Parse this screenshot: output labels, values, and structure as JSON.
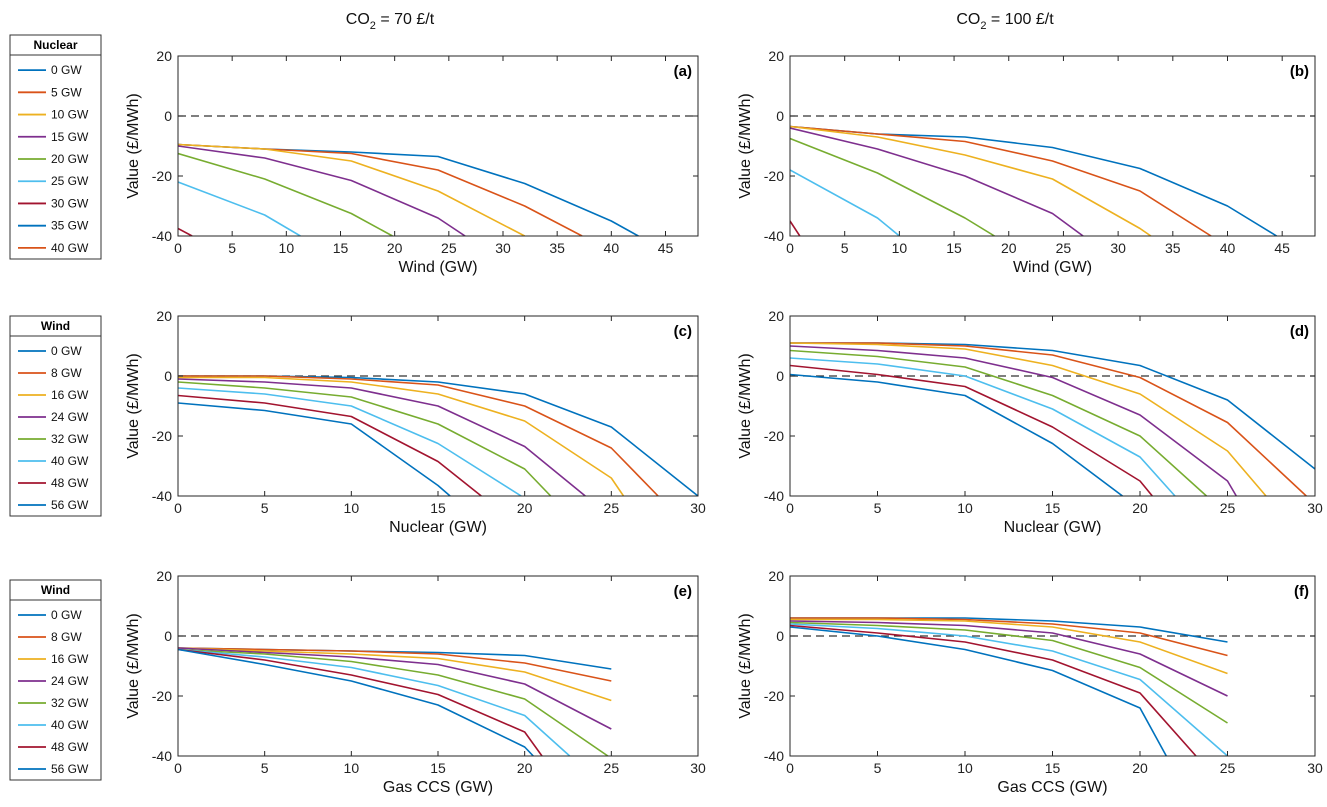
{
  "figure": {
    "col_titles": [
      {
        "prefix": "CO",
        "sub": "2",
        "suffix": " = 70 £/t"
      },
      {
        "prefix": "CO",
        "sub": "2",
        "suffix": " = 100 £/t"
      }
    ]
  },
  "legends": [
    {
      "title": "Nuclear",
      "entries": [
        "0 GW",
        "5 GW",
        "10 GW",
        "15 GW",
        "20 GW",
        "25 GW",
        "30 GW",
        "35 GW",
        "40 GW"
      ]
    },
    {
      "title": "Wind",
      "entries": [
        "0 GW",
        "8 GW",
        "16 GW",
        "24 GW",
        "32 GW",
        "40 GW",
        "48  GW",
        "56 GW"
      ]
    },
    {
      "title": "Wind",
      "entries": [
        "0 GW",
        "8 GW",
        "16 GW",
        "24 GW",
        "32 GW",
        "40 GW",
        "48 GW",
        "56 GW"
      ]
    }
  ],
  "colors": [
    "#0072BD",
    "#D95319",
    "#EDB120",
    "#7E2F8E",
    "#77AC30",
    "#4DBEEE",
    "#A2142F",
    "#0072BD",
    "#D95319"
  ],
  "chart_data": [
    {
      "type": "line",
      "tag": "(a)",
      "xlabel": "Wind (GW)",
      "ylabel": "Value (£/MWh)",
      "xlim": [
        0,
        48
      ],
      "ylim": [
        -40,
        20
      ],
      "xticks": [
        0,
        5,
        10,
        15,
        20,
        25,
        30,
        35,
        40,
        45
      ],
      "yticks": [
        -40,
        -20,
        0,
        20
      ],
      "reference_line_y": 0,
      "series": [
        {
          "name": "0 GW",
          "x": [
            0,
            8,
            16,
            24,
            32,
            40,
            42.5
          ],
          "y": [
            -9.5,
            -11,
            -12,
            -13.5,
            -22.5,
            -35,
            -40
          ]
        },
        {
          "name": "5 GW",
          "x": [
            0,
            8,
            16,
            24,
            32,
            37.3
          ],
          "y": [
            -9.5,
            -11,
            -12.5,
            -18,
            -30,
            -40
          ]
        },
        {
          "name": "10 GW",
          "x": [
            0,
            8,
            16,
            24,
            32
          ],
          "y": [
            -9.5,
            -11,
            -15,
            -25,
            -40
          ]
        },
        {
          "name": "15 GW",
          "x": [
            0,
            8,
            16,
            24,
            26.5
          ],
          "y": [
            -10,
            -14,
            -21.5,
            -34,
            -40
          ]
        },
        {
          "name": "20 GW",
          "x": [
            0,
            8,
            16,
            19.8
          ],
          "y": [
            -12.5,
            -21,
            -32.5,
            -40
          ]
        },
        {
          "name": "25 GW",
          "x": [
            0,
            8,
            11.3
          ],
          "y": [
            -22,
            -33,
            -40
          ]
        },
        {
          "name": "30 GW",
          "x": [
            0,
            1.3
          ],
          "y": [
            -37.5,
            -40
          ]
        }
      ]
    },
    {
      "type": "line",
      "tag": "(b)",
      "xlabel": "Wind (GW)",
      "ylabel": "Value (£/MWh)",
      "xlim": [
        0,
        48
      ],
      "ylim": [
        -40,
        20
      ],
      "xticks": [
        0,
        5,
        10,
        15,
        20,
        25,
        30,
        35,
        40,
        45
      ],
      "yticks": [
        -40,
        -20,
        0,
        20
      ],
      "reference_line_y": 0,
      "series": [
        {
          "name": "0 GW",
          "x": [
            0,
            8,
            16,
            24,
            32,
            40,
            44.5
          ],
          "y": [
            -3.5,
            -6,
            -7,
            -10.5,
            -17.5,
            -30,
            -40
          ]
        },
        {
          "name": "5 GW",
          "x": [
            0,
            8,
            16,
            24,
            32,
            38.5
          ],
          "y": [
            -3.5,
            -6,
            -8.5,
            -15,
            -25,
            -40
          ]
        },
        {
          "name": "10 GW",
          "x": [
            0,
            8,
            16,
            24,
            32,
            33
          ],
          "y": [
            -3.5,
            -7,
            -13,
            -21,
            -37.5,
            -40
          ]
        },
        {
          "name": "15 GW",
          "x": [
            0,
            8,
            16,
            24,
            26.8
          ],
          "y": [
            -4,
            -11,
            -20,
            -32.5,
            -40
          ]
        },
        {
          "name": "20 GW",
          "x": [
            0,
            8,
            16,
            18.7
          ],
          "y": [
            -7.5,
            -19,
            -34,
            -40
          ]
        },
        {
          "name": "25 GW",
          "x": [
            0,
            8,
            10
          ],
          "y": [
            -18,
            -34,
            -40
          ]
        },
        {
          "name": "30 GW",
          "x": [
            0,
            0.9
          ],
          "y": [
            -35,
            -40
          ]
        }
      ]
    },
    {
      "type": "line",
      "tag": "(c)",
      "xlabel": "Nuclear (GW)",
      "ylabel": "Value (£/MWh)",
      "xlim": [
        0,
        30
      ],
      "ylim": [
        -40,
        20
      ],
      "xticks": [
        0,
        5,
        10,
        15,
        20,
        25,
        30
      ],
      "yticks": [
        -40,
        -20,
        0,
        20
      ],
      "reference_line_y": 0,
      "series": [
        {
          "name": "0 GW",
          "x": [
            0,
            5,
            10,
            15,
            20,
            25,
            30
          ],
          "y": [
            0,
            0,
            -0.5,
            -2,
            -6,
            -17,
            -40
          ]
        },
        {
          "name": "8 GW",
          "x": [
            0,
            5,
            10,
            15,
            20,
            25,
            27.7
          ],
          "y": [
            0,
            0,
            -1,
            -3,
            -10,
            -24,
            -40
          ]
        },
        {
          "name": "16 GW",
          "x": [
            0,
            5,
            10,
            15,
            20,
            25,
            25.7
          ],
          "y": [
            -0.5,
            -0.5,
            -2,
            -6,
            -15,
            -34,
            -40
          ]
        },
        {
          "name": "24 GW",
          "x": [
            0,
            5,
            10,
            15,
            20,
            23.5
          ],
          "y": [
            -1,
            -2,
            -4,
            -10,
            -23.5,
            -40
          ]
        },
        {
          "name": "32 GW",
          "x": [
            0,
            5,
            10,
            15,
            20,
            21.5
          ],
          "y": [
            -2,
            -4,
            -7,
            -16,
            -31,
            -40
          ]
        },
        {
          "name": "40 GW",
          "x": [
            0,
            5,
            10,
            15,
            19.8
          ],
          "y": [
            -4,
            -6,
            -10,
            -22.5,
            -40
          ]
        },
        {
          "name": "48  GW",
          "x": [
            0,
            5,
            10,
            15,
            17.5
          ],
          "y": [
            -6.5,
            -9,
            -13.5,
            -28.5,
            -40
          ]
        },
        {
          "name": "56 GW",
          "x": [
            0,
            5,
            10,
            15,
            15.7
          ],
          "y": [
            -9,
            -11.5,
            -16,
            -36.5,
            -40
          ]
        }
      ]
    },
    {
      "type": "line",
      "tag": "(d)",
      "xlabel": "Nuclear (GW)",
      "ylabel": "Value (£/MWh)",
      "xlim": [
        0,
        30
      ],
      "ylim": [
        -40,
        20
      ],
      "xticks": [
        0,
        5,
        10,
        15,
        20,
        25,
        30
      ],
      "yticks": [
        -40,
        -20,
        0,
        20
      ],
      "reference_line_y": 0,
      "series": [
        {
          "name": "0 GW",
          "x": [
            0,
            5,
            10,
            15,
            20,
            25,
            30
          ],
          "y": [
            11,
            11,
            10.5,
            8.5,
            3.5,
            -8,
            -31
          ]
        },
        {
          "name": "8 GW",
          "x": [
            0,
            5,
            10,
            15,
            20,
            25,
            29.5
          ],
          "y": [
            11,
            11,
            10,
            7,
            -0.5,
            -15.5,
            -40
          ]
        },
        {
          "name": "16 GW",
          "x": [
            0,
            5,
            10,
            15,
            20,
            25,
            27.2
          ],
          "y": [
            11,
            10.5,
            9,
            3.5,
            -6,
            -25,
            -40
          ]
        },
        {
          "name": "24 GW",
          "x": [
            0,
            5,
            10,
            15,
            20,
            25,
            25.5
          ],
          "y": [
            10,
            8.5,
            6,
            -0.5,
            -13,
            -35,
            -40
          ]
        },
        {
          "name": "32 GW",
          "x": [
            0,
            5,
            10,
            15,
            20,
            23.8
          ],
          "y": [
            8.5,
            6.5,
            3,
            -6.5,
            -20,
            -40
          ]
        },
        {
          "name": "40 GW",
          "x": [
            0,
            5,
            10,
            15,
            20,
            22
          ],
          "y": [
            6,
            4,
            0,
            -11,
            -27,
            -40
          ]
        },
        {
          "name": "48 GW",
          "x": [
            0,
            5,
            10,
            15,
            20,
            20.7
          ],
          "y": [
            3.5,
            0.5,
            -3.5,
            -17,
            -35,
            -40
          ]
        },
        {
          "name": "56 GW",
          "x": [
            0,
            5,
            10,
            15,
            19
          ],
          "y": [
            0.5,
            -2,
            -6.5,
            -22.5,
            -40
          ]
        }
      ]
    },
    {
      "type": "line",
      "tag": "(e)",
      "xlabel": "Gas CCS (GW)",
      "ylabel": "Value (£/MWh)",
      "xlim": [
        0,
        30
      ],
      "ylim": [
        -40,
        20
      ],
      "xticks": [
        0,
        5,
        10,
        15,
        20,
        25,
        30
      ],
      "yticks": [
        -40,
        -20,
        0,
        20
      ],
      "reference_line_y": 0,
      "series": [
        {
          "name": "0 GW",
          "x": [
            0,
            5,
            10,
            15,
            20,
            25
          ],
          "y": [
            -4,
            -4.5,
            -5,
            -5.5,
            -6.5,
            -11
          ]
        },
        {
          "name": "8 GW",
          "x": [
            0,
            5,
            10,
            15,
            20,
            25
          ],
          "y": [
            -4,
            -4.5,
            -5,
            -6,
            -9,
            -15
          ]
        },
        {
          "name": "16 GW",
          "x": [
            0,
            5,
            10,
            15,
            20,
            25
          ],
          "y": [
            -4,
            -5,
            -6,
            -7.5,
            -12,
            -21.5
          ]
        },
        {
          "name": "24 GW",
          "x": [
            0,
            5,
            10,
            15,
            20,
            25
          ],
          "y": [
            -4,
            -5.5,
            -7,
            -9.5,
            -16,
            -31
          ]
        },
        {
          "name": "32 GW",
          "x": [
            0,
            5,
            10,
            15,
            20,
            24.8
          ],
          "y": [
            -4.5,
            -6,
            -8.5,
            -13,
            -21,
            -40
          ]
        },
        {
          "name": "40 GW",
          "x": [
            0,
            5,
            10,
            15,
            20,
            22.6
          ],
          "y": [
            -4.5,
            -7,
            -10.5,
            -16.5,
            -26.5,
            -40
          ]
        },
        {
          "name": "48 GW",
          "x": [
            0,
            5,
            10,
            15,
            20,
            21
          ],
          "y": [
            -4.5,
            -8,
            -13,
            -19.5,
            -32,
            -40
          ]
        },
        {
          "name": "56 GW",
          "x": [
            0,
            5,
            10,
            15,
            20,
            20.5
          ],
          "y": [
            -4.5,
            -9.5,
            -15,
            -23,
            -37,
            -40
          ]
        }
      ]
    },
    {
      "type": "line",
      "tag": "(f)",
      "xlabel": "Gas CCS (GW)",
      "ylabel": "Value (£/MWh)",
      "xlim": [
        0,
        30
      ],
      "ylim": [
        -40,
        20
      ],
      "xticks": [
        0,
        5,
        10,
        15,
        20,
        25,
        30
      ],
      "yticks": [
        -40,
        -20,
        0,
        20
      ],
      "reference_line_y": 0,
      "series": [
        {
          "name": "0 GW",
          "x": [
            0,
            5,
            10,
            15,
            20,
            25
          ],
          "y": [
            6,
            6,
            6,
            5,
            3,
            -2
          ]
        },
        {
          "name": "8 GW",
          "x": [
            0,
            5,
            10,
            15,
            20,
            25
          ],
          "y": [
            6,
            6,
            5.5,
            4,
            1,
            -6.5
          ]
        },
        {
          "name": "16 GW",
          "x": [
            0,
            5,
            10,
            15,
            20,
            25
          ],
          "y": [
            5.5,
            5.5,
            5,
            3,
            -2,
            -12.5
          ]
        },
        {
          "name": "24 GW",
          "x": [
            0,
            5,
            10,
            15,
            20,
            25
          ],
          "y": [
            5,
            4.5,
            3.5,
            1,
            -6,
            -20
          ]
        },
        {
          "name": "32 GW",
          "x": [
            0,
            5,
            10,
            15,
            20,
            25
          ],
          "y": [
            4.5,
            3.5,
            2,
            -1.5,
            -10.5,
            -29
          ]
        },
        {
          "name": "40 GW",
          "x": [
            0,
            5,
            10,
            15,
            20,
            25
          ],
          "y": [
            4,
            2.5,
            0,
            -5,
            -14.5,
            -40
          ]
        },
        {
          "name": "48 GW",
          "x": [
            0,
            5,
            10,
            15,
            20,
            23.2
          ],
          "y": [
            3.5,
            1,
            -2,
            -8,
            -19,
            -40
          ]
        },
        {
          "name": "56 GW",
          "x": [
            0,
            5,
            10,
            15,
            20,
            21.5
          ],
          "y": [
            3,
            0,
            -4.5,
            -11.5,
            -24,
            -40
          ]
        }
      ]
    }
  ]
}
